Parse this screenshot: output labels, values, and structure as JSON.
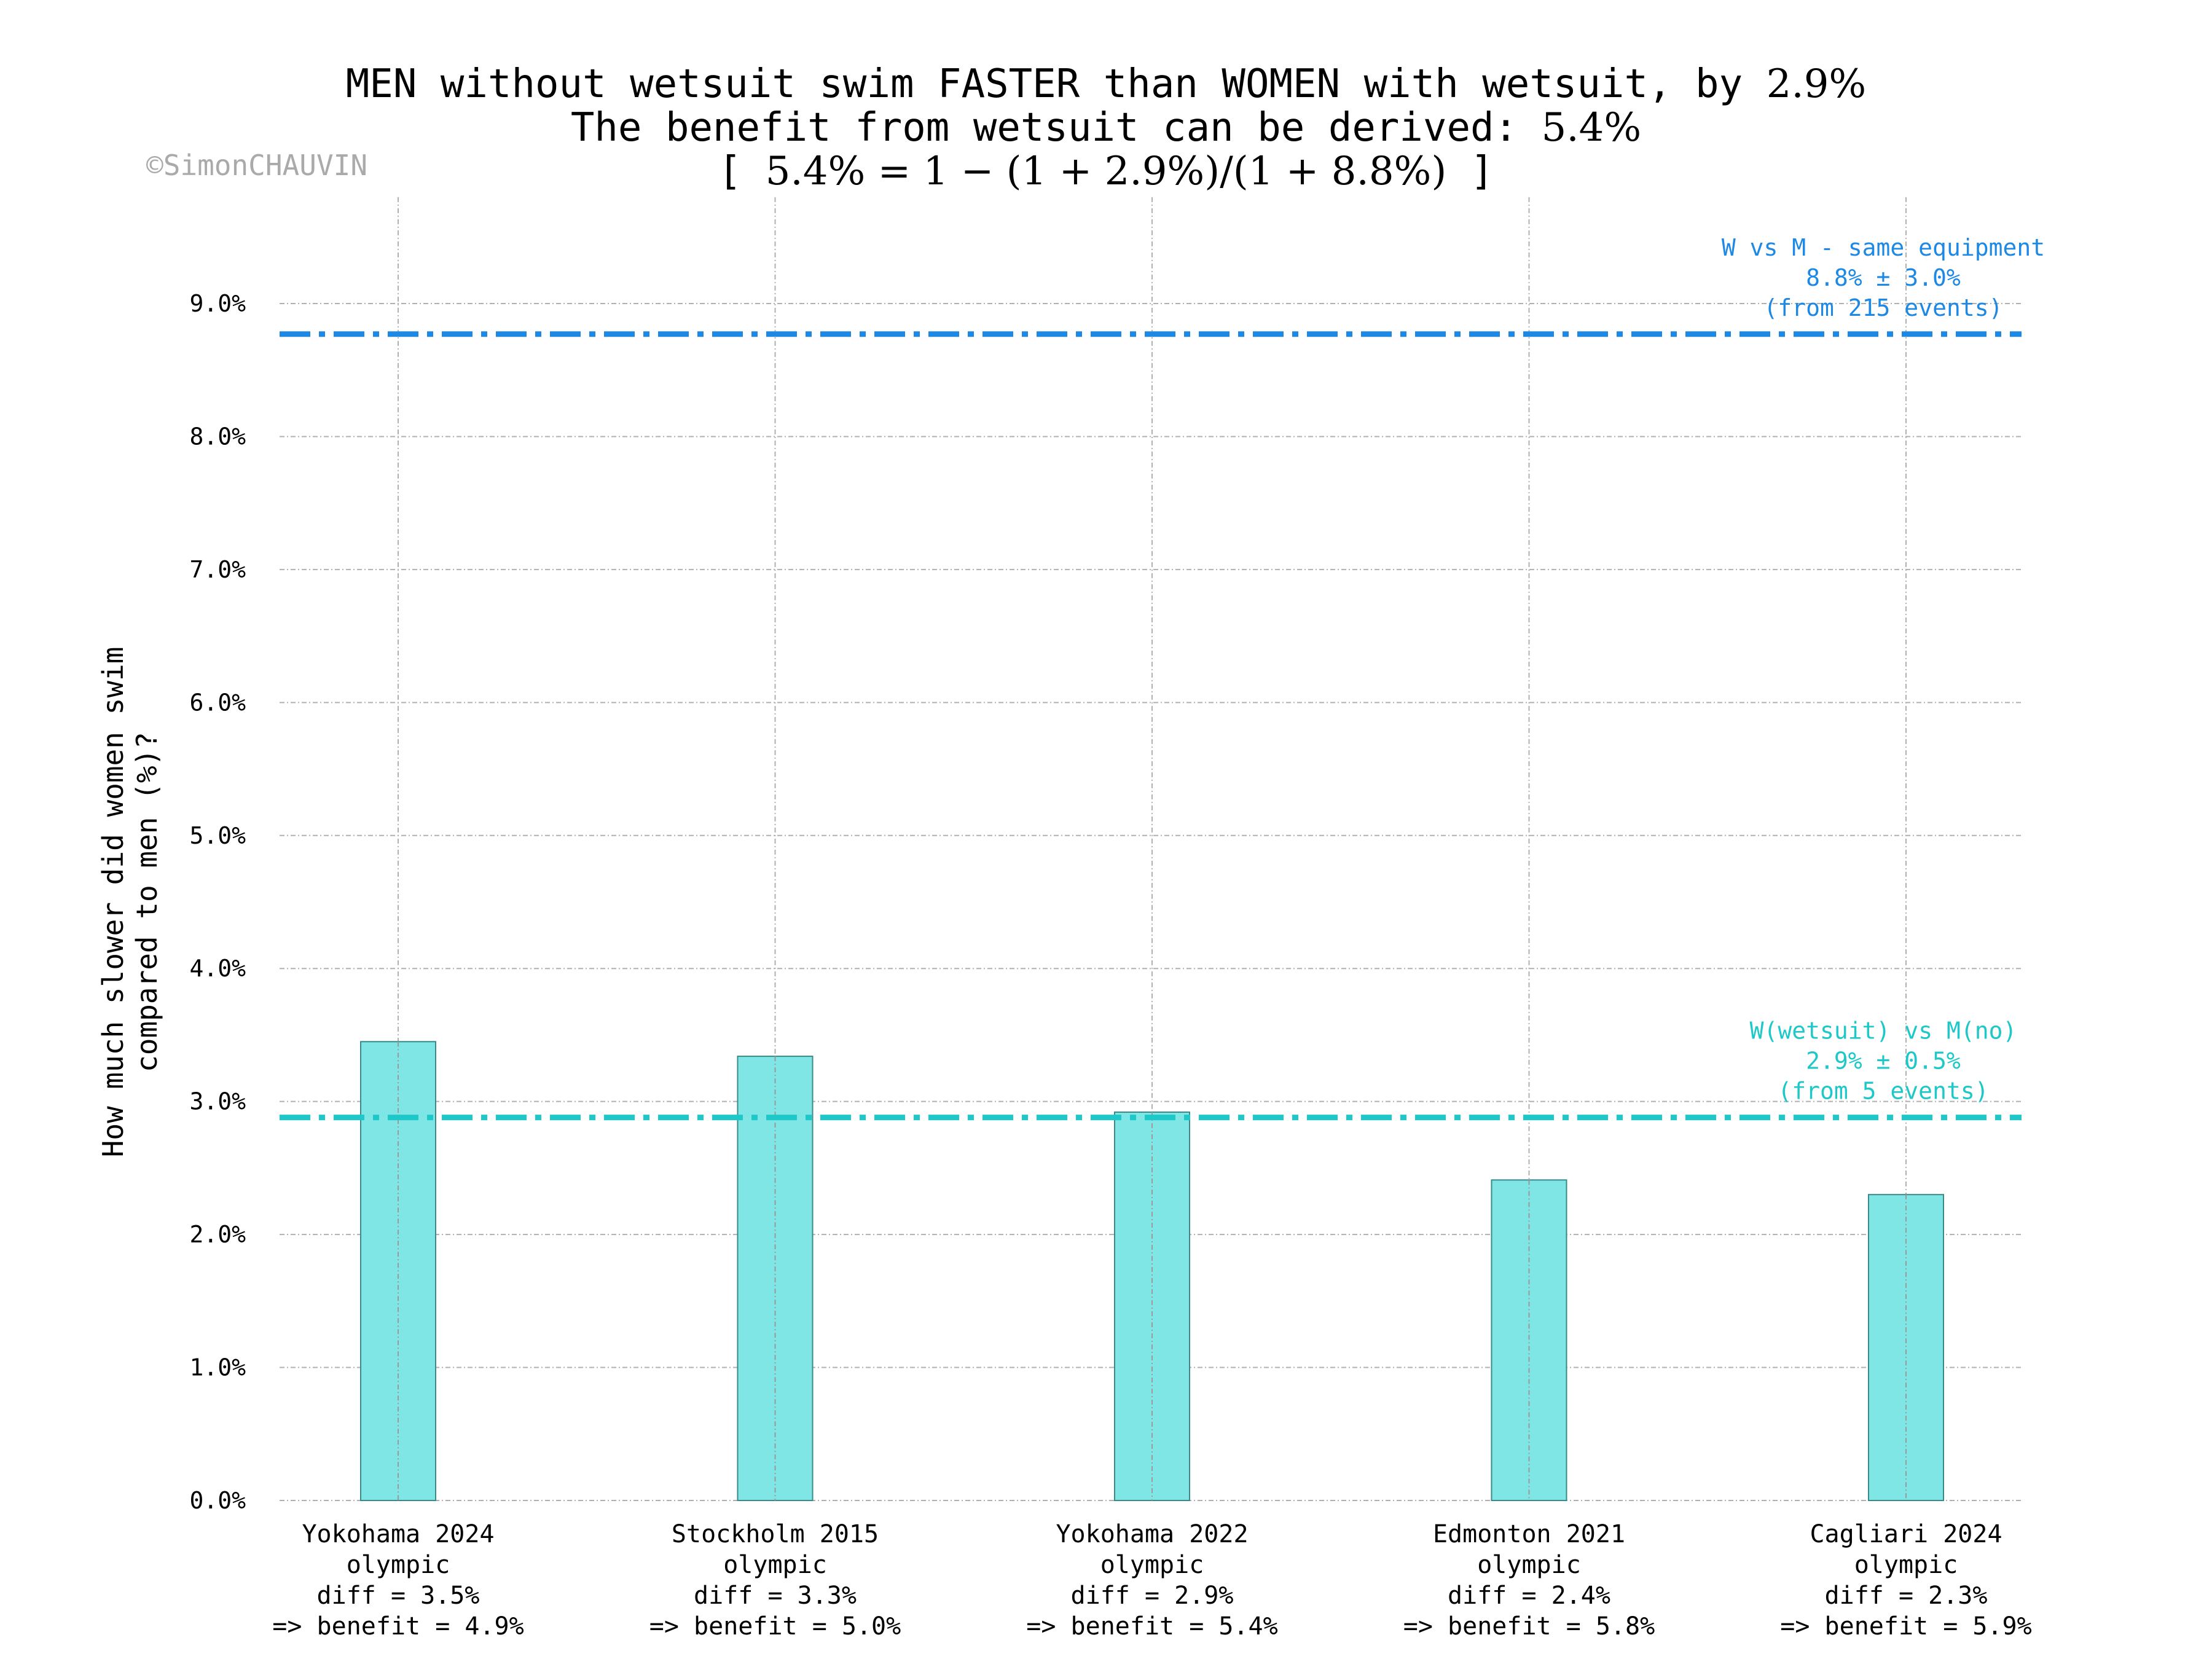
{
  "chart_data": {
    "type": "bar",
    "title_lines": [
      {
        "text": "MEN without wetsuit swim FASTER than WOMEN with wetsuit, by ",
        "math": "2.9%"
      },
      {
        "text": "The benefit from wetsuit can be derived: ",
        "math": "5.4%"
      },
      {
        "text": "[  ",
        "math": "5.4% = 1 − (1 + 2.9%)/(1 + 8.8%)",
        "suffix": "  ]"
      }
    ],
    "copyright": "©SimonCHAUVIN",
    "ylabel_lines": [
      "How much slower did women swim",
      "compared to men (%)?"
    ],
    "ylim": [
      0,
      9.8
    ],
    "yticks": [
      "0.0%",
      "1.0%",
      "2.0%",
      "3.0%",
      "4.0%",
      "5.0%",
      "6.0%",
      "7.0%",
      "8.0%",
      "9.0%"
    ],
    "grid": true,
    "bar_color": "#7fe5e5",
    "categories": [
      {
        "lines": [
          "Yokohama 2024",
          "olympic",
          "diff = 3.5%",
          "=> benefit = 4.9%"
        ],
        "value": 3.45
      },
      {
        "lines": [
          "Stockholm 2015",
          "olympic",
          "diff = 3.3%",
          "=> benefit = 5.0%"
        ],
        "value": 3.34
      },
      {
        "lines": [
          "Yokohama 2022",
          "olympic",
          "diff = 2.9%",
          "=> benefit = 5.4%"
        ],
        "value": 2.92
      },
      {
        "lines": [
          "Edmonton 2021",
          "olympic",
          "diff = 2.4%",
          "=> benefit = 5.8%"
        ],
        "value": 2.41
      },
      {
        "lines": [
          "Cagliari 2024",
          "olympic",
          "diff = 2.3%",
          "=> benefit = 5.9%"
        ],
        "value": 2.3
      }
    ],
    "reference_lines": [
      {
        "value": 8.77,
        "color": "#1e88e5",
        "label_lines": [
          "W vs M - same equipment",
          "8.8% ± 3.0%",
          "(from 215 events)"
        ]
      },
      {
        "value": 2.88,
        "color": "#1ec8c8",
        "label_lines": [
          "W(wetsuit) vs M(no)",
          "2.9% ± 0.5%",
          "(from 5 events)"
        ]
      }
    ]
  }
}
